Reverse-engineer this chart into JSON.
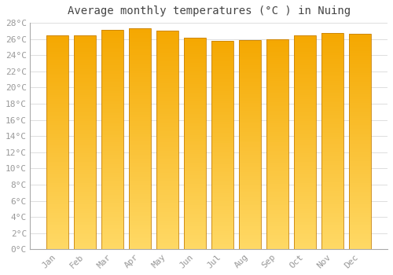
{
  "title": "Average monthly temperatures (°C ) in Nuing",
  "months": [
    "Jan",
    "Feb",
    "Mar",
    "Apr",
    "May",
    "Jun",
    "Jul",
    "Aug",
    "Sep",
    "Oct",
    "Nov",
    "Dec"
  ],
  "values": [
    26.5,
    26.5,
    27.1,
    27.3,
    27.0,
    26.2,
    25.8,
    25.9,
    26.0,
    26.5,
    26.7,
    26.6
  ],
  "bar_color_top": "#F5A800",
  "bar_color_bottom": "#FFD966",
  "bar_edge_color": "#C8820A",
  "background_color": "#FFFFFF",
  "grid_color": "#DDDDDD",
  "ylim": [
    0,
    28
  ],
  "ytick_step": 2,
  "title_fontsize": 10,
  "tick_fontsize": 8,
  "font_family": "monospace"
}
